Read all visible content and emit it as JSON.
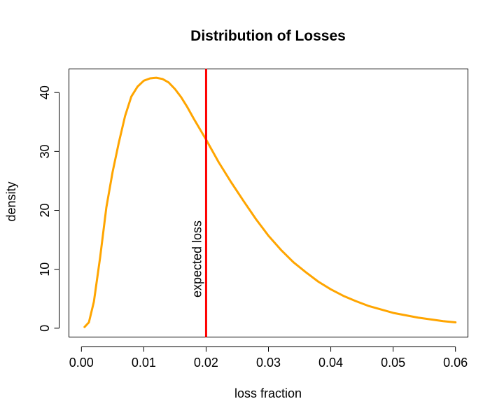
{
  "chart_data": {
    "type": "line",
    "title": "Distribution of Losses",
    "xlabel": "loss fraction",
    "ylabel": "density",
    "xlim": [
      -0.002,
      0.062
    ],
    "ylim": [
      -1.5,
      44
    ],
    "x_ticks": [
      0.0,
      0.01,
      0.02,
      0.03,
      0.04,
      0.05,
      0.06
    ],
    "x_tick_labels": [
      "0.00",
      "0.01",
      "0.02",
      "0.03",
      "0.04",
      "0.05",
      "0.06"
    ],
    "y_ticks": [
      0,
      10,
      20,
      30,
      40
    ],
    "y_tick_labels": [
      "0",
      "10",
      "20",
      "30",
      "40"
    ],
    "series": [
      {
        "name": "density",
        "color": "#FFA500",
        "x": [
          0.0005,
          0.0012,
          0.002,
          0.003,
          0.004,
          0.005,
          0.006,
          0.007,
          0.008,
          0.009,
          0.01,
          0.011,
          0.012,
          0.013,
          0.014,
          0.015,
          0.016,
          0.017,
          0.018,
          0.019,
          0.02,
          0.022,
          0.024,
          0.026,
          0.028,
          0.03,
          0.032,
          0.034,
          0.036,
          0.038,
          0.04,
          0.042,
          0.044,
          0.046,
          0.048,
          0.05,
          0.052,
          0.054,
          0.056,
          0.058,
          0.06
        ],
        "y": [
          0.2,
          1.0,
          4.5,
          12.0,
          20.5,
          26.5,
          31.5,
          36.0,
          39.3,
          41.0,
          42.0,
          42.4,
          42.5,
          42.3,
          41.7,
          40.6,
          39.2,
          37.5,
          35.6,
          33.8,
          32.0,
          28.2,
          24.8,
          21.6,
          18.5,
          15.7,
          13.3,
          11.2,
          9.5,
          7.9,
          6.6,
          5.5,
          4.6,
          3.8,
          3.2,
          2.6,
          2.2,
          1.8,
          1.5,
          1.2,
          1.0
        ]
      }
    ],
    "vline": {
      "x": 0.02,
      "label": "expected loss",
      "color": "#FF0000"
    }
  }
}
